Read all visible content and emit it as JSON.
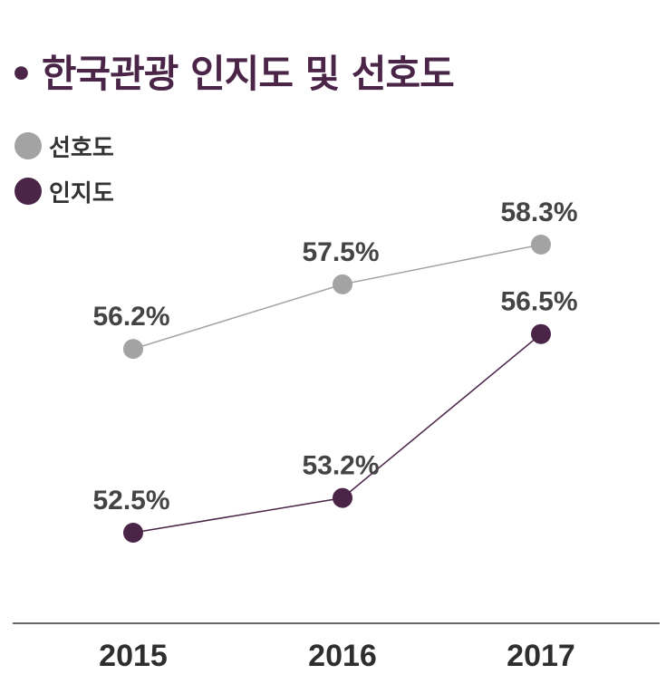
{
  "chart_data": {
    "type": "line",
    "title": "한국관광 인지도 및 선호도",
    "title_bullet": "•",
    "categories": [
      "2015",
      "2016",
      "2017"
    ],
    "series": [
      {
        "name": "선호도",
        "values": [
          56.2,
          57.5,
          58.3
        ],
        "labels": [
          "56.2%",
          "57.5%",
          "58.3%"
        ],
        "color": "#a3a3a3"
      },
      {
        "name": "인지도",
        "values": [
          52.5,
          53.2,
          56.5
        ],
        "labels": [
          "52.5%",
          "53.2%",
          "56.5%"
        ],
        "color": "#4a2548"
      }
    ],
    "legend_position": "top-left",
    "grid": false,
    "baseline_color": "#333333"
  }
}
